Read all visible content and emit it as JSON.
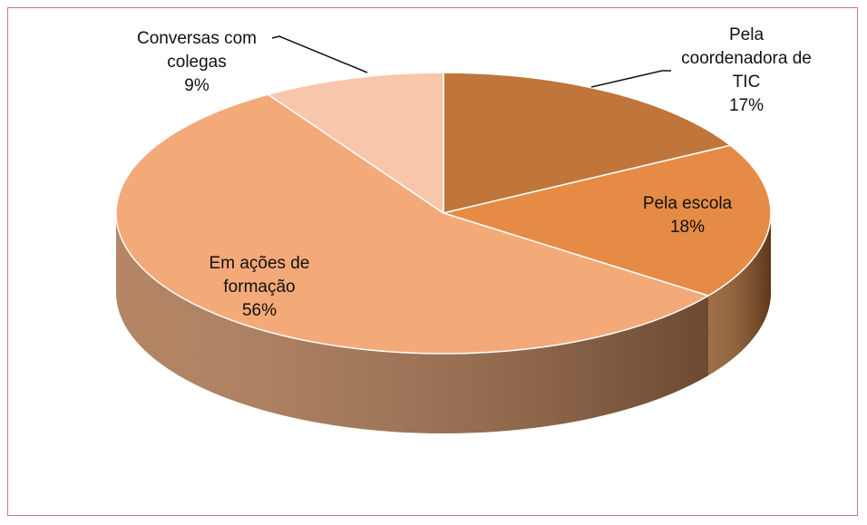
{
  "chart_data": {
    "type": "pie",
    "categories": [
      "Pela coordenadora de TIC",
      "Pela escola",
      "Em ações de formação",
      "Conversas com colegas"
    ],
    "values": [
      17,
      18,
      56,
      9
    ],
    "value_labels": [
      "17%",
      "18%",
      "56%",
      "9%"
    ],
    "colors": [
      "#c0753a",
      "#e68b45",
      "#f4a978",
      "#f7c6ab"
    ],
    "side_colors": [
      "#7e4a22",
      "#8e5424",
      "#a7704a",
      "#b98a70"
    ]
  }
}
